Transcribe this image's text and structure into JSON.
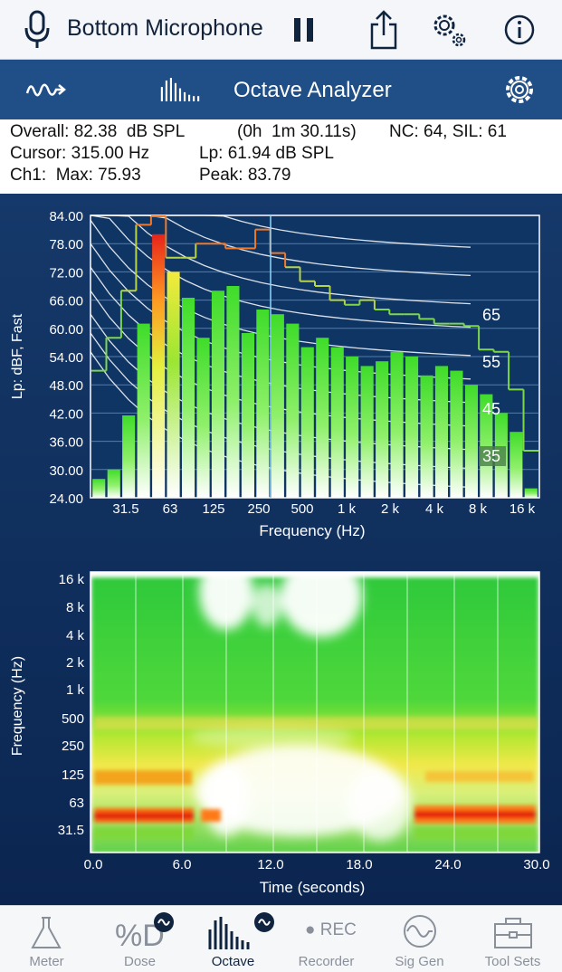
{
  "topbar": {
    "title": "Bottom Microphone"
  },
  "appbar": {
    "title": "Octave Analyzer"
  },
  "info": {
    "overall": "Overall: 82.38  dB SPL",
    "elapsed": "(0h  1m 30.11s)",
    "nc": "NC: 64, SIL: 61",
    "cursor": "Cursor: 315.00 Hz",
    "lp": "Lp: 61.94 dB SPL",
    "ch1": "Ch1:  Max: 75.93",
    "peak": "Peak: 83.79"
  },
  "chart_data": [
    {
      "type": "bar",
      "xlabel": "Frequency (Hz)",
      "ylabel": "Lp: dBF, Fast",
      "ylim": [
        24,
        84
      ],
      "yticks": [
        "84.00",
        "78.00",
        "72.00",
        "66.00",
        "60.00",
        "54.00",
        "48.00",
        "42.00",
        "36.00",
        "30.00",
        "24.00"
      ],
      "xticks": [
        "31.5",
        "63",
        "125",
        "250",
        "500",
        "1 k",
        "2 k",
        "4 k",
        "8 k",
        "16 k"
      ],
      "values": [
        28,
        30,
        41.5,
        61,
        80,
        72,
        66.5,
        58,
        68,
        69,
        59,
        64,
        63,
        61,
        56,
        58,
        56,
        54,
        52,
        53,
        55,
        54,
        50,
        52,
        51,
        48,
        46,
        42,
        38,
        26
      ],
      "peak_line": [
        51,
        58,
        68,
        82,
        84,
        75,
        75,
        78,
        78,
        77,
        77,
        81,
        76,
        73,
        70,
        69,
        66,
        65,
        66,
        64,
        63,
        63,
        62,
        61,
        61,
        60.5,
        55.5,
        55,
        47,
        34
      ],
      "cursor_hz": "315",
      "nc_curve_labels": [
        "65",
        "55",
        "45",
        "35"
      ],
      "grid": true
    },
    {
      "type": "heatmap",
      "xlabel": "Time (seconds)",
      "ylabel": "Frequency (Hz)",
      "xticks": [
        "0.0",
        "6.0",
        "12.0",
        "18.0",
        "24.0",
        "30.0"
      ],
      "yticks": [
        "16 k",
        "8 k",
        "4 k",
        "2 k",
        "1 k",
        "500",
        "250",
        "125",
        "63",
        "31.5"
      ],
      "xlim": [
        0,
        30
      ]
    }
  ],
  "tabs": [
    {
      "label": "Meter",
      "active": false
    },
    {
      "label": "Dose",
      "active": false
    },
    {
      "label": "Octave",
      "active": true
    },
    {
      "label": "Recorder",
      "active": false,
      "icon_text": "REC"
    },
    {
      "label": "Sig Gen",
      "active": false
    },
    {
      "label": "Tool Sets",
      "active": false
    }
  ]
}
